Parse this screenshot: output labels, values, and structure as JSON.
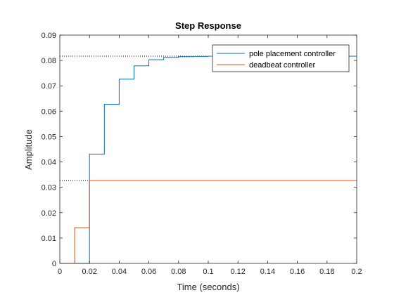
{
  "chart_data": {
    "type": "line",
    "title": "Step Response",
    "xlabel": "Time (seconds)",
    "ylabel": "Amplitude",
    "xlim": [
      0,
      0.2
    ],
    "ylim": [
      0,
      0.09
    ],
    "x_ticks": [
      0,
      0.02,
      0.04,
      0.06,
      0.08,
      0.1,
      0.12,
      0.14,
      0.16,
      0.18,
      0.2
    ],
    "x_tick_labels": [
      "0",
      "0.02",
      "0.04",
      "0.06",
      "0.08",
      "0.1",
      "0.12",
      "0.14",
      "0.16",
      "0.18",
      "0.2"
    ],
    "y_ticks": [
      0,
      0.01,
      0.02,
      0.03,
      0.04,
      0.05,
      0.06,
      0.07,
      0.08,
      0.09
    ],
    "y_tick_labels": [
      "0",
      "0.01",
      "0.02",
      "0.03",
      "0.04",
      "0.05",
      "0.06",
      "0.07",
      "0.08",
      "0.09"
    ],
    "grid": false,
    "legend_position": "top-right",
    "series": [
      {
        "name": "pole placement controller",
        "color": "#0072BD",
        "step": true,
        "x": [
          0,
          0.01,
          0.02,
          0.03,
          0.04,
          0.05,
          0.06,
          0.07,
          0.08,
          0.09,
          0.1,
          0.11,
          0.12,
          0.13,
          0.14,
          0.15,
          0.16,
          0.17,
          0.18,
          0.19,
          0.2
        ],
        "y": [
          0,
          0,
          0.0431,
          0.0627,
          0.0727,
          0.0779,
          0.0803,
          0.0812,
          0.0815,
          0.0816,
          0.0817,
          0.0817,
          0.0817,
          0.0817,
          0.0817,
          0.0817,
          0.0817,
          0.0817,
          0.0817,
          0.0817,
          0.0817
        ]
      },
      {
        "name": "deadbeat controller",
        "color": "#D95319",
        "step": true,
        "x": [
          0,
          0.01,
          0.02,
          0.03,
          0.04,
          0.05,
          0.06,
          0.07,
          0.08,
          0.09,
          0.1,
          0.11,
          0.12,
          0.13,
          0.14,
          0.15,
          0.16,
          0.17,
          0.18,
          0.19,
          0.2
        ],
        "y": [
          0,
          0.0141,
          0.0327,
          0.0327,
          0.0327,
          0.0327,
          0.0327,
          0.0327,
          0.0327,
          0.0327,
          0.0327,
          0.0327,
          0.0327,
          0.0327,
          0.0327,
          0.0327,
          0.0327,
          0.0327,
          0.0327,
          0.0327,
          0.0327
        ]
      }
    ],
    "reference_lines": [
      {
        "y": 0.0817,
        "x_end": 0.1,
        "style": "dotted"
      },
      {
        "y": 0.0327,
        "x_end": 0.02,
        "style": "dotted"
      }
    ]
  }
}
